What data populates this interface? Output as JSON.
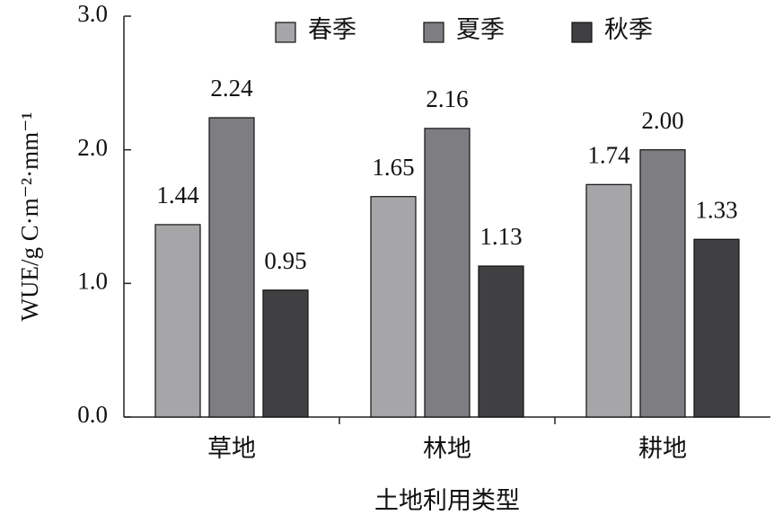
{
  "chart_data": {
    "type": "bar",
    "y_label": "WUE/g C·m⁻²·mm⁻¹",
    "x_label": "土地利用类型",
    "categories": [
      "草地",
      "林地",
      "耕地"
    ],
    "series": [
      {
        "name": "春季",
        "color": "#a6a6a8",
        "values": [
          1.44,
          1.65,
          1.74
        ],
        "value_labels": [
          "1.44",
          "1.65",
          "1.74"
        ]
      },
      {
        "name": "夏季",
        "color": "#7e7e82",
        "values": [
          2.24,
          2.16,
          2
        ],
        "value_labels": [
          "2.24",
          "2.16",
          "2.00"
        ]
      },
      {
        "name": "秋季",
        "color": "#404043",
        "values": [
          0.95,
          1.13,
          1.33
        ],
        "value_labels": [
          "0.95",
          "1.13",
          "1.33"
        ]
      }
    ],
    "ylim": [
      0,
      3
    ],
    "yticks": [
      {
        "value": 0,
        "label": "0.0"
      },
      {
        "value": 1,
        "label": "1.0"
      },
      {
        "value": 2,
        "label": "2.0"
      },
      {
        "value": 3,
        "label": "3.0"
      }
    ],
    "legend": "top"
  }
}
